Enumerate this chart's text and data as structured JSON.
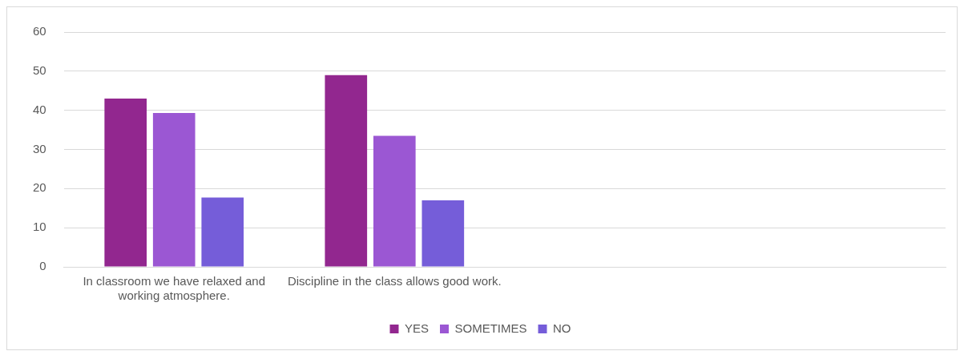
{
  "chart_data": {
    "type": "bar",
    "categories": [
      "In classroom we have relaxed and working atmosphere.",
      "Discipline in the class allows good work.",
      null,
      null
    ],
    "series": [
      {
        "name": "YES",
        "color": "#92278f",
        "values": [
          43,
          49,
          null,
          null
        ]
      },
      {
        "name": "SOMETIMES",
        "color": "#9b57d3",
        "values": [
          39.3,
          33.5,
          null,
          null
        ]
      },
      {
        "name": "NO",
        "color": "#755dd9",
        "values": [
          17.7,
          17,
          null,
          null
        ]
      }
    ],
    "ylim": [
      0,
      60
    ],
    "yticks": [
      0,
      10,
      20,
      30,
      40,
      50,
      60
    ],
    "grid": "y",
    "legend": "bottom"
  }
}
